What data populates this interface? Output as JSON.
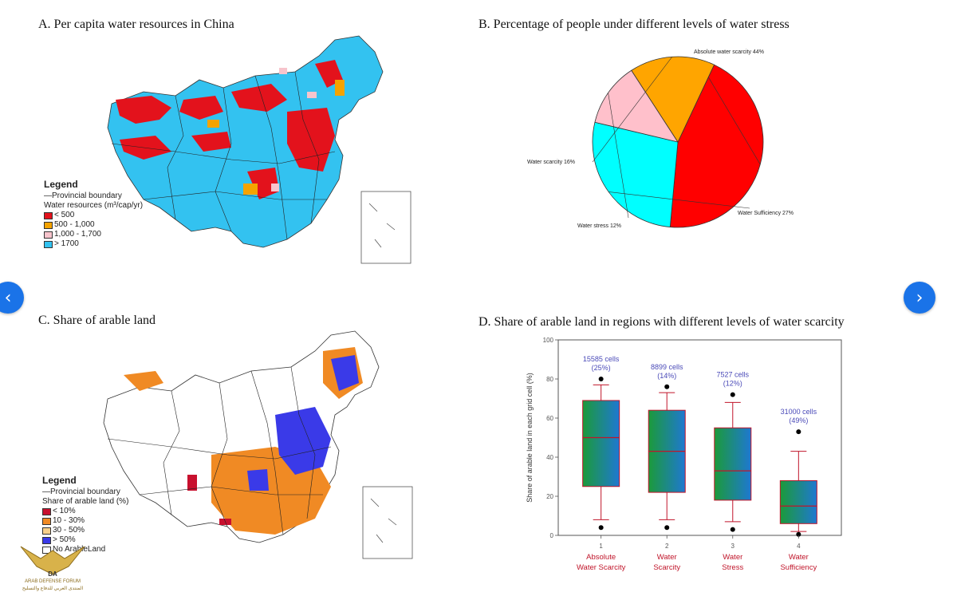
{
  "panels": {
    "a": {
      "title": "A. Per capita water resources in China",
      "legend_title": "Legend",
      "boundary_label": "—Provincial boundary",
      "resources_label": "Water resources (m³/cap/yr)",
      "items": [
        {
          "label": "< 500",
          "color": "#e3121c"
        },
        {
          "label": "500 - 1,000",
          "color": "#f5a300"
        },
        {
          "label": "1,000 - 1,700",
          "color": "#f7c4cc"
        },
        {
          "label": "> 1700",
          "color": "#33c2f0"
        }
      ]
    },
    "b": {
      "title": "B. Percentage of people under different levels of water stress"
    },
    "c": {
      "title": "C. Share of arable land",
      "legend_title": "Legend",
      "boundary_label": "—Provincial boundary",
      "share_label": "Share of arable land (%)",
      "items": [
        {
          "label": "< 10%",
          "color": "#c8102e"
        },
        {
          "label": "10 - 30%",
          "color": "#f08a24"
        },
        {
          "label": "30 - 50%",
          "color": "#f7d08a"
        },
        {
          "label": "> 50%",
          "color": "#3a3ae8"
        },
        {
          "label": "No ArableLand",
          "color": "#ffffff"
        }
      ]
    },
    "d": {
      "title": "D. Share of arable land in regions with different levels of water scarcity"
    }
  },
  "nav": {
    "prev_label": "‹",
    "next_label": "›"
  },
  "watermark": {
    "brand": "DA",
    "line1": "ARAB DEFENSE FORUM",
    "line2": "المنتدى العربي للدفاع والتسليح"
  },
  "chart_data": [
    {
      "type": "pie",
      "title": "B. Percentage of people under different levels of water stress",
      "slices": [
        {
          "label": "Absolute water scarcity 44%",
          "value": 44,
          "color": "#ff0000"
        },
        {
          "label": "Water Sufficiency 27%",
          "value": 27,
          "color": "#00ffff"
        },
        {
          "label": "Water stress 12%",
          "value": 12,
          "color": "#ffc0cb"
        },
        {
          "label": "Water scarcity 16%",
          "value": 16,
          "color": "#ffa500"
        }
      ]
    },
    {
      "type": "box",
      "title": "D. Share of arable land in regions with different levels of water scarcity",
      "ylabel": "Share of arable land in each grid cell (%)",
      "ylim": [
        0,
        100
      ],
      "yticks": [
        0,
        20,
        40,
        60,
        80,
        100
      ],
      "categories": [
        {
          "num": "1",
          "line1": "Absolute",
          "line2": "Water Scarcity"
        },
        {
          "num": "2",
          "line1": "Water",
          "line2": "Scarcity"
        },
        {
          "num": "3",
          "line1": "Water",
          "line2": "Stress"
        },
        {
          "num": "4",
          "line1": "Water",
          "line2": "Sufficiency"
        }
      ],
      "boxes": [
        {
          "q1": 25,
          "median": 50,
          "q3": 69,
          "whisker_low": 8,
          "whisker_high": 77,
          "outlier_low": 4,
          "outlier_high": 80,
          "count": "15585 cells",
          "pct": "(25%)"
        },
        {
          "q1": 22,
          "median": 43,
          "q3": 64,
          "whisker_low": 8,
          "whisker_high": 73,
          "outlier_low": 4,
          "outlier_high": 76,
          "count": "8899 cells",
          "pct": "(14%)"
        },
        {
          "q1": 18,
          "median": 33,
          "q3": 55,
          "whisker_low": 7,
          "whisker_high": 68,
          "outlier_low": 3,
          "outlier_high": 72,
          "count": "7527 cells",
          "pct": "(12%)"
        },
        {
          "q1": 6,
          "median": 15,
          "q3": 28,
          "whisker_low": 2,
          "whisker_high": 43,
          "outlier_low": 0.5,
          "outlier_high": 53,
          "count": "31000 cells",
          "pct": "(49%)"
        }
      ]
    }
  ]
}
